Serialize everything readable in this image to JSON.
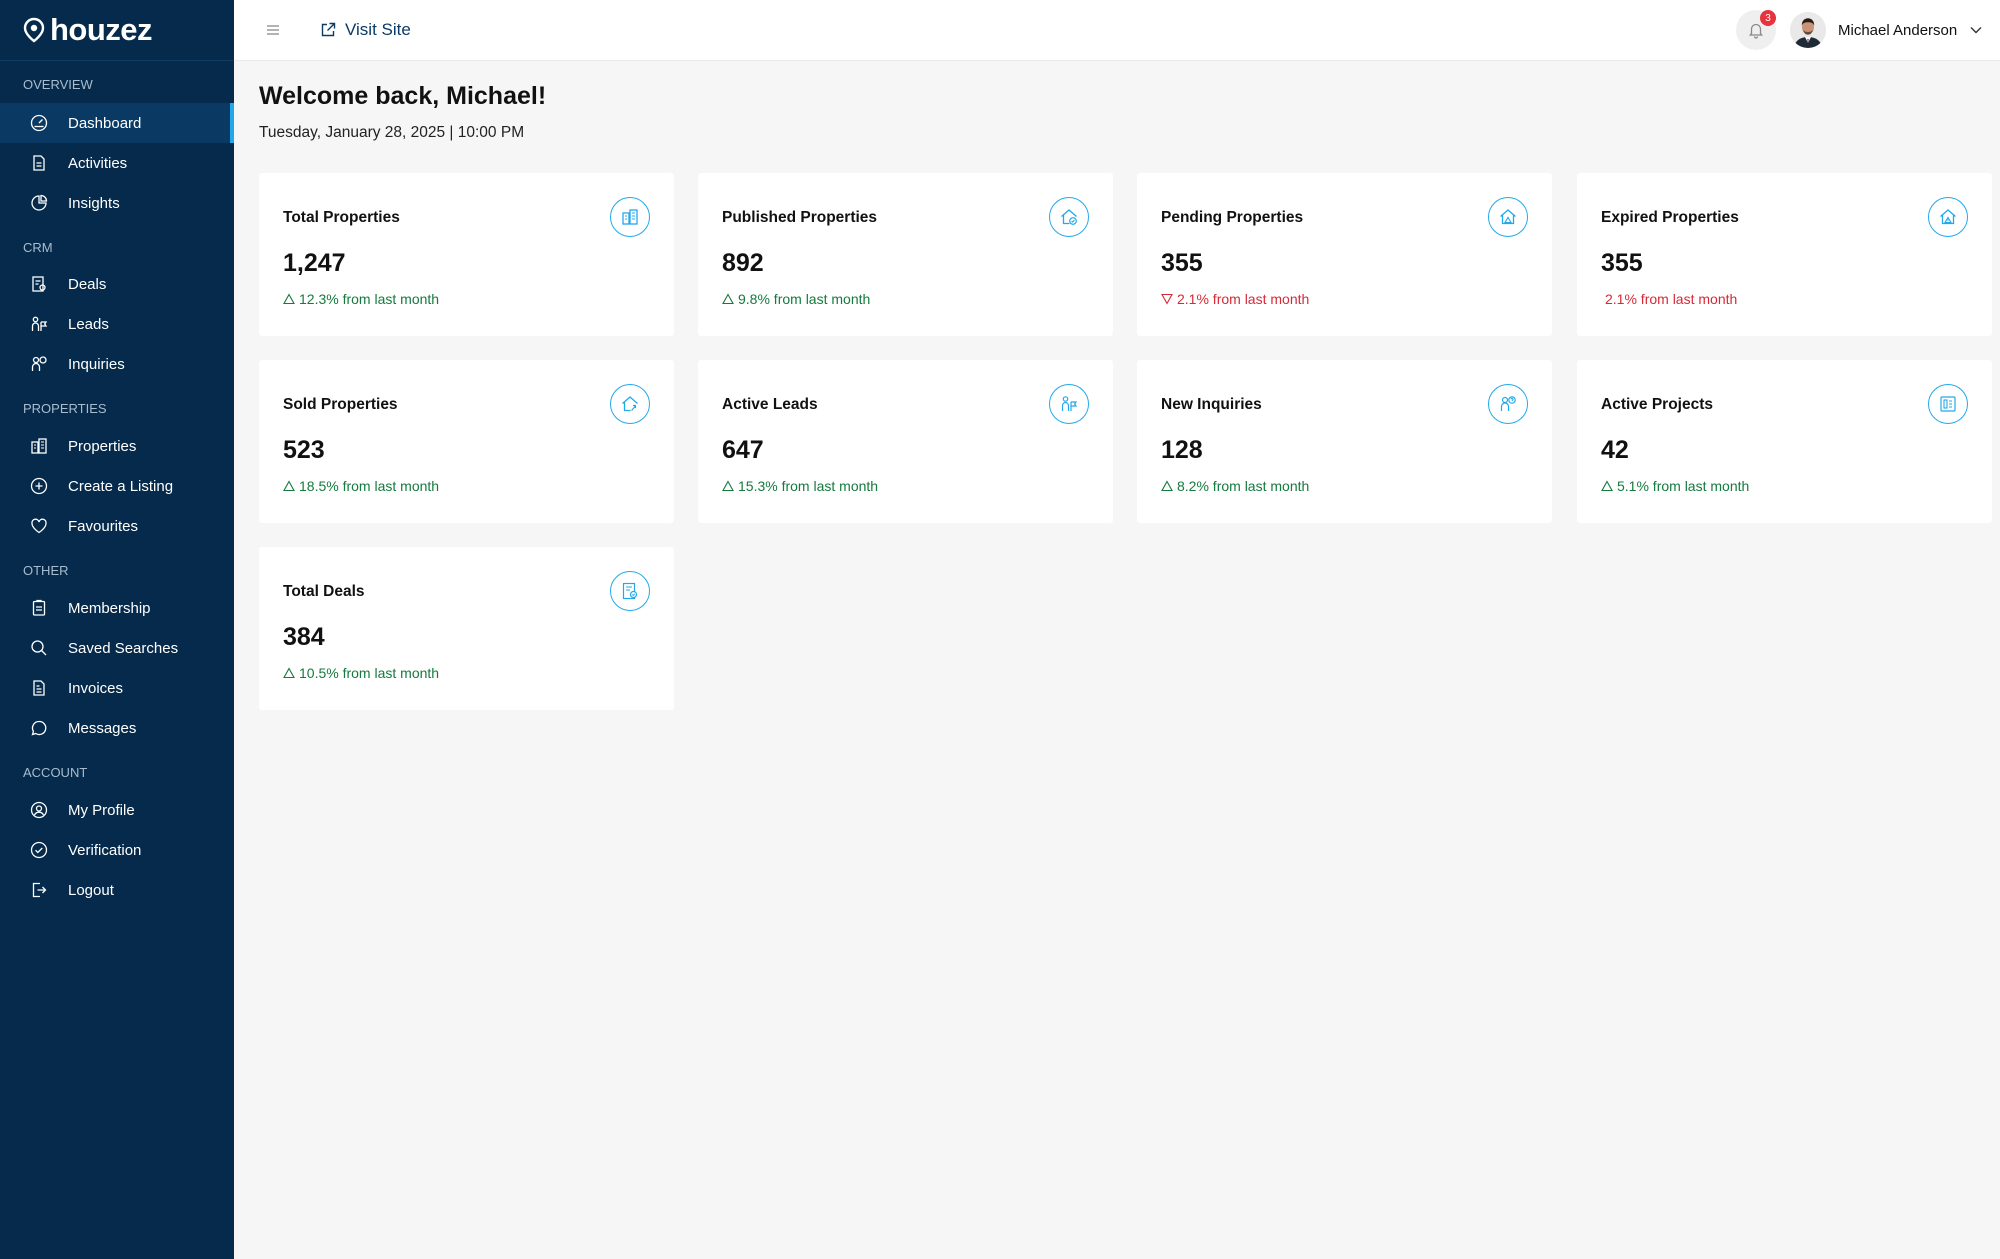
{
  "brand": {
    "name": "houzez"
  },
  "sidebar": {
    "sections": [
      {
        "label": "OVERVIEW",
        "items": [
          {
            "label": "Dashboard",
            "icon": "dashboard-icon",
            "active": true
          },
          {
            "label": "Activities",
            "icon": "activities-icon"
          },
          {
            "label": "Insights",
            "icon": "insights-icon"
          }
        ]
      },
      {
        "label": "CRM",
        "items": [
          {
            "label": "Deals",
            "icon": "deals-icon"
          },
          {
            "label": "Leads",
            "icon": "leads-icon"
          },
          {
            "label": "Inquiries",
            "icon": "inquiries-icon"
          }
        ]
      },
      {
        "label": "PROPERTIES",
        "items": [
          {
            "label": "Properties",
            "icon": "properties-icon"
          },
          {
            "label": "Create a Listing",
            "icon": "plus-circle-icon"
          },
          {
            "label": "Favourites",
            "icon": "heart-icon"
          }
        ]
      },
      {
        "label": "OTHER",
        "items": [
          {
            "label": "Membership",
            "icon": "membership-icon"
          },
          {
            "label": "Saved Searches",
            "icon": "search-icon"
          },
          {
            "label": "Invoices",
            "icon": "invoice-icon"
          },
          {
            "label": "Messages",
            "icon": "message-icon"
          }
        ]
      },
      {
        "label": "ACCOUNT",
        "items": [
          {
            "label": "My Profile",
            "icon": "profile-icon"
          },
          {
            "label": "Verification",
            "icon": "check-circle-icon"
          },
          {
            "label": "Logout",
            "icon": "logout-icon"
          }
        ]
      }
    ]
  },
  "topbar": {
    "visit_site": "Visit Site",
    "notification_count": "3",
    "user_name": "Michael Anderson"
  },
  "main": {
    "welcome": "Welcome back, Michael!",
    "date": "Tuesday, January 28, 2025 | 10:00 PM"
  },
  "cards": [
    {
      "title": "Total Properties",
      "value": "1,247",
      "trend": "12.3% from last month",
      "direction": "up",
      "icon": "building-icon"
    },
    {
      "title": "Published Properties",
      "value": "892",
      "trend": "9.8% from last month",
      "direction": "up",
      "icon": "home-check-icon"
    },
    {
      "title": "Pending Properties",
      "value": "355",
      "trend": "2.1% from last month",
      "direction": "down",
      "icon": "home-pending-icon"
    },
    {
      "title": "Expired Properties",
      "value": "355",
      "trend": "2.1% from last month",
      "direction": "down-noarrow",
      "icon": "home-alert-icon"
    },
    {
      "title": "Sold Properties",
      "value": "523",
      "trend": "18.5% from last month",
      "direction": "up",
      "icon": "home-sold-icon"
    },
    {
      "title": "Active Leads",
      "value": "647",
      "trend": "15.3% from last month",
      "direction": "up",
      "icon": "lead-flag-icon"
    },
    {
      "title": "New Inquiries",
      "value": "128",
      "trend": "8.2% from last month",
      "direction": "up",
      "icon": "inquiry-icon"
    },
    {
      "title": "Active Projects",
      "value": "42",
      "trend": "5.1% from last month",
      "direction": "up",
      "icon": "project-icon"
    },
    {
      "title": "Total Deals",
      "value": "384",
      "trend": "10.5% from last month",
      "direction": "up",
      "icon": "deal-doc-icon"
    }
  ],
  "colors": {
    "sidebar_bg": "#052a4b",
    "accent": "#22a9ea",
    "up": "#157a3e",
    "down": "#d62a36"
  }
}
